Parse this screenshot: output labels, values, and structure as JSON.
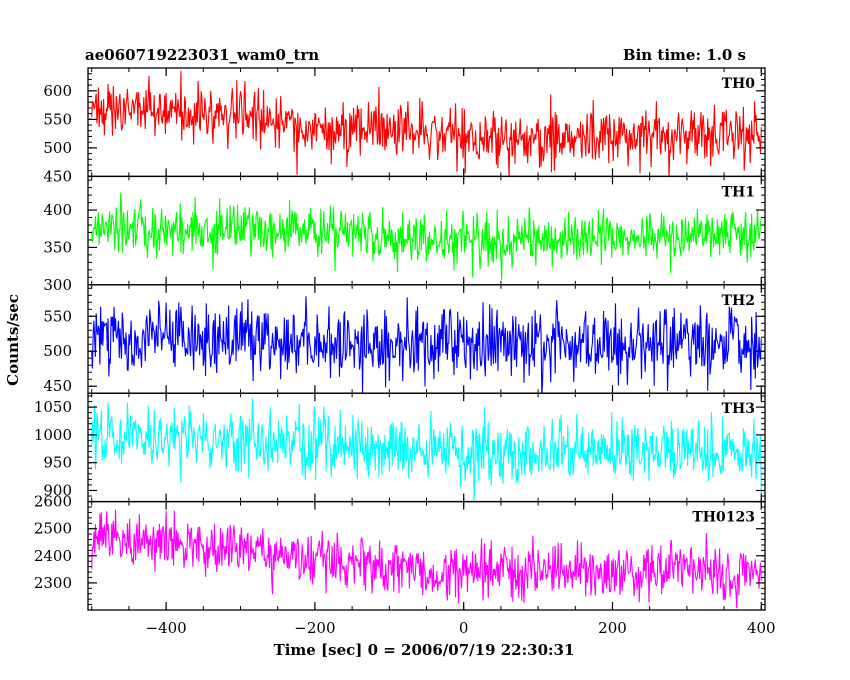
{
  "chart_data": {
    "type": "line",
    "title": "ae060719223031_wam0_trn",
    "subtitle": "Bin time: 1.0 s",
    "xlabel": "Time [sec] 0 = 2006/07/19 22:30:31",
    "ylabel": "Counts/sec",
    "xlim": [
      -505,
      405
    ],
    "x_ticks": [
      -400,
      -200,
      0,
      200,
      400
    ],
    "grid": false,
    "panels": [
      {
        "name": "TH0",
        "color": "#ff0000",
        "ylim": [
          450,
          640
        ],
        "y_ticks": [
          450,
          500,
          550,
          600
        ],
        "trend": [
          [
            -505,
            575
          ],
          [
            -400,
            565
          ],
          [
            -200,
            540
          ],
          [
            0,
            515
          ],
          [
            200,
            520
          ],
          [
            405,
            525
          ]
        ],
        "noise": 25
      },
      {
        "name": "TH1",
        "color": "#00ff00",
        "ylim": [
          300,
          445
        ],
        "y_ticks": [
          300,
          350,
          400
        ],
        "trend": [
          [
            -505,
            380
          ],
          [
            -400,
            375
          ],
          [
            -200,
            370
          ],
          [
            0,
            358
          ],
          [
            200,
            365
          ],
          [
            405,
            365
          ]
        ],
        "noise": 17
      },
      {
        "name": "TH2",
        "color": "#0000ff",
        "ylim": [
          440,
          595
        ],
        "y_ticks": [
          450,
          500,
          550
        ],
        "trend": [
          [
            -505,
            520
          ],
          [
            -400,
            518
          ],
          [
            -200,
            512
          ],
          [
            0,
            510
          ],
          [
            200,
            512
          ],
          [
            405,
            512
          ]
        ],
        "noise": 25
      },
      {
        "name": "TH3",
        "color": "#00ffff",
        "ylim": [
          880,
          1075
        ],
        "y_ticks": [
          900,
          950,
          1000,
          1050
        ],
        "trend": [
          [
            -505,
            1000
          ],
          [
            -400,
            995
          ],
          [
            -200,
            985
          ],
          [
            0,
            965
          ],
          [
            200,
            975
          ],
          [
            405,
            968
          ]
        ],
        "noise": 28
      },
      {
        "name": "TH0123",
        "color": "#ff00ff",
        "ylim": [
          2200,
          2600
        ],
        "y_ticks": [
          2300,
          2400,
          2500,
          2600
        ],
        "trend": [
          [
            -505,
            2470
          ],
          [
            -400,
            2445
          ],
          [
            -200,
            2390
          ],
          [
            0,
            2340
          ],
          [
            200,
            2350
          ],
          [
            405,
            2345
          ]
        ],
        "noise": 50
      }
    ]
  }
}
